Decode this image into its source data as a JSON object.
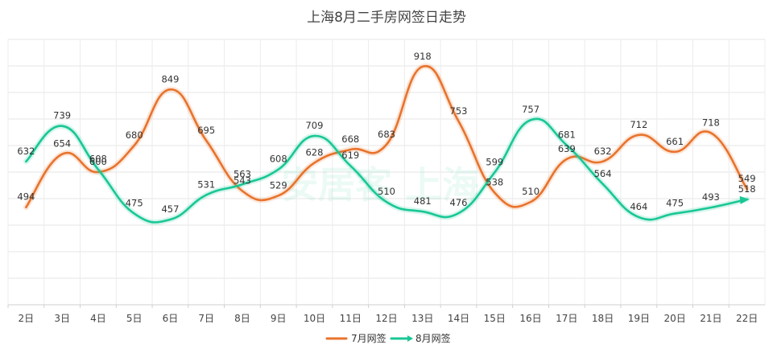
{
  "chart_data": {
    "type": "line",
    "title": "上海8月二手房网签日走势",
    "categories": [
      "2日",
      "3日",
      "4日",
      "5日",
      "6日",
      "7日",
      "8日",
      "9日",
      "10日",
      "11日",
      "12日",
      "13日",
      "14日",
      "15日",
      "16日",
      "17日",
      "18日",
      "19日",
      "20日",
      "21日",
      "22日"
    ],
    "series": [
      {
        "name": "7月网签",
        "color": "#e8732c",
        "values": [
          494,
          654,
          600,
          680,
          849,
          695,
          543,
          529,
          628,
          668,
          683,
          918,
          753,
          538,
          510,
          639,
          632,
          712,
          661,
          718,
          549
        ]
      },
      {
        "name": "8月网签",
        "color": "#19c795",
        "values": [
          632,
          739,
          608,
          475,
          457,
          531,
          563,
          608,
          709,
          619,
          510,
          481,
          476,
          599,
          757,
          681,
          564,
          464,
          475,
          493,
          518
        ]
      }
    ],
    "ylim": [
      200,
      1000
    ],
    "grid": true,
    "legend_position": "bottom",
    "watermark": "安居客 上海"
  }
}
